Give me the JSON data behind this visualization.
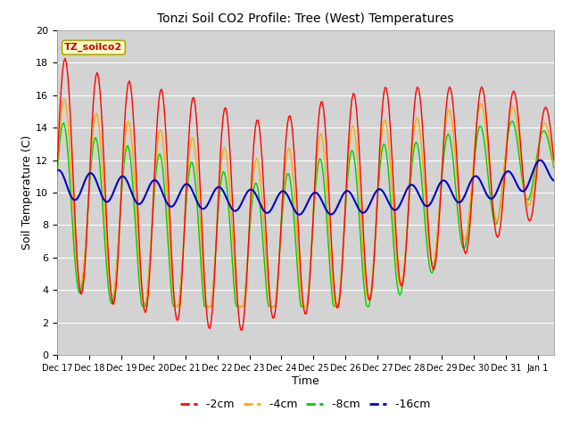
{
  "title": "Tonzi Soil CO2 Profile: Tree (West) Temperatures",
  "xlabel": "Time",
  "ylabel": "Soil Temperature (C)",
  "ylim": [
    0,
    20
  ],
  "plot_bg_color": "#d3d3d3",
  "legend_label": "TZ_soilco2",
  "legend_bg": "#ffffcc",
  "legend_border": "#aaaa00",
  "colors": {
    "-2cm": "#ff0000",
    "-4cm": "#ffaa00",
    "-8cm": "#00cc00",
    "-16cm": "#0000cc"
  },
  "xtick_labels": [
    "Dec 17",
    "Dec 18",
    "Dec 19",
    "Dec 20",
    "Dec 21",
    "Dec 22",
    "Dec 23",
    "Dec 24",
    "Dec 25",
    "Dec 26",
    "Dec 27",
    "Dec 28",
    "Dec 29",
    "Dec 30",
    "Dec 31",
    "Jan 1"
  ],
  "ytick_labels": [
    "0",
    "2",
    "4",
    "6",
    "8",
    "10",
    "12",
    "14",
    "16",
    "18",
    "20"
  ],
  "figsize": [
    6.4,
    4.8
  ],
  "dpi": 100
}
